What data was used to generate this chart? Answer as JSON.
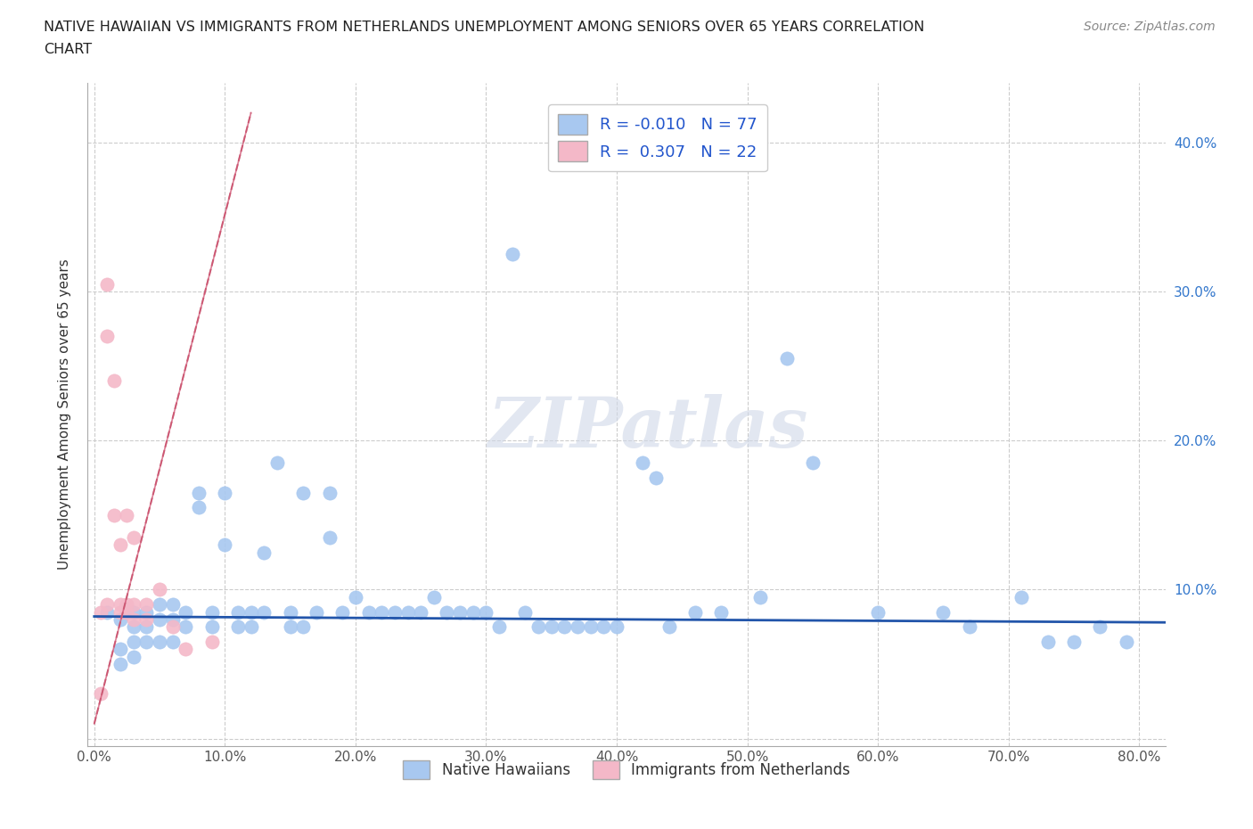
{
  "title_line1": "NATIVE HAWAIIAN VS IMMIGRANTS FROM NETHERLANDS UNEMPLOYMENT AMONG SENIORS OVER 65 YEARS CORRELATION",
  "title_line2": "CHART",
  "source_text": "Source: ZipAtlas.com",
  "ylabel": "Unemployment Among Seniors over 65 years",
  "xlim": [
    -0.005,
    0.82
  ],
  "ylim": [
    -0.005,
    0.44
  ],
  "x_ticks": [
    0.0,
    0.1,
    0.2,
    0.3,
    0.4,
    0.5,
    0.6,
    0.7,
    0.8
  ],
  "x_tick_labels": [
    "0.0%",
    "10.0%",
    "20.0%",
    "30.0%",
    "40.0%",
    "50.0%",
    "60.0%",
    "70.0%",
    "80.0%"
  ],
  "y_ticks": [
    0.0,
    0.1,
    0.2,
    0.3,
    0.4
  ],
  "y_tick_labels_left": [
    "",
    "",
    "",
    "",
    ""
  ],
  "y_tick_labels_right": [
    "",
    "10.0%",
    "20.0%",
    "30.0%",
    "40.0%"
  ],
  "blue_R": -0.01,
  "blue_N": 77,
  "pink_R": 0.307,
  "pink_N": 22,
  "blue_color": "#a8c8f0",
  "pink_color": "#f4b8c8",
  "blue_line_color": "#2255aa",
  "pink_line_color": "#d08090",
  "grid_color": "#cccccc",
  "background_color": "#ffffff",
  "watermark": "ZIPatlas",
  "blue_scatter_x": [
    0.01,
    0.02,
    0.02,
    0.02,
    0.03,
    0.03,
    0.03,
    0.03,
    0.04,
    0.04,
    0.04,
    0.05,
    0.05,
    0.05,
    0.06,
    0.06,
    0.06,
    0.07,
    0.07,
    0.08,
    0.08,
    0.09,
    0.09,
    0.1,
    0.1,
    0.11,
    0.11,
    0.12,
    0.12,
    0.13,
    0.13,
    0.14,
    0.15,
    0.15,
    0.16,
    0.16,
    0.17,
    0.18,
    0.18,
    0.19,
    0.2,
    0.21,
    0.22,
    0.23,
    0.24,
    0.25,
    0.26,
    0.27,
    0.28,
    0.29,
    0.3,
    0.31,
    0.32,
    0.33,
    0.34,
    0.35,
    0.36,
    0.37,
    0.38,
    0.39,
    0.4,
    0.42,
    0.43,
    0.44,
    0.46,
    0.48,
    0.51,
    0.53,
    0.55,
    0.6,
    0.65,
    0.67,
    0.71,
    0.73,
    0.75,
    0.77,
    0.79
  ],
  "blue_scatter_y": [
    0.085,
    0.08,
    0.06,
    0.05,
    0.085,
    0.075,
    0.065,
    0.055,
    0.085,
    0.075,
    0.065,
    0.09,
    0.08,
    0.065,
    0.09,
    0.08,
    0.065,
    0.085,
    0.075,
    0.165,
    0.155,
    0.085,
    0.075,
    0.165,
    0.13,
    0.085,
    0.075,
    0.085,
    0.075,
    0.125,
    0.085,
    0.185,
    0.085,
    0.075,
    0.165,
    0.075,
    0.085,
    0.165,
    0.135,
    0.085,
    0.095,
    0.085,
    0.085,
    0.085,
    0.085,
    0.085,
    0.095,
    0.085,
    0.085,
    0.085,
    0.085,
    0.075,
    0.325,
    0.085,
    0.075,
    0.075,
    0.075,
    0.075,
    0.075,
    0.075,
    0.075,
    0.185,
    0.175,
    0.075,
    0.085,
    0.085,
    0.095,
    0.255,
    0.185,
    0.085,
    0.085,
    0.075,
    0.095,
    0.065,
    0.065,
    0.075,
    0.065
  ],
  "pink_scatter_x": [
    0.005,
    0.005,
    0.01,
    0.01,
    0.01,
    0.015,
    0.015,
    0.02,
    0.02,
    0.02,
    0.025,
    0.025,
    0.025,
    0.03,
    0.03,
    0.03,
    0.04,
    0.04,
    0.05,
    0.06,
    0.07,
    0.09
  ],
  "pink_scatter_y": [
    0.085,
    0.03,
    0.305,
    0.27,
    0.09,
    0.24,
    0.15,
    0.13,
    0.09,
    0.085,
    0.15,
    0.09,
    0.085,
    0.135,
    0.09,
    0.08,
    0.09,
    0.08,
    0.1,
    0.075,
    0.06,
    0.065
  ]
}
